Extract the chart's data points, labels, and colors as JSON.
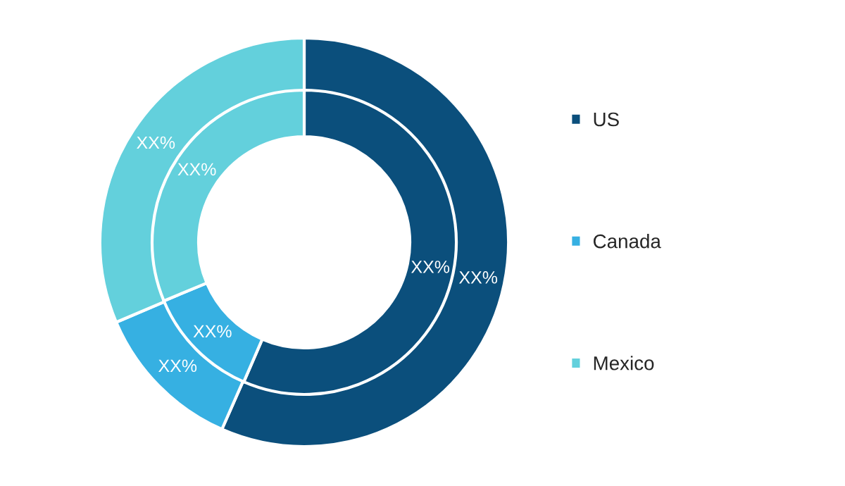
{
  "chart_data": {
    "type": "donut",
    "categories": [
      "US",
      "Canada",
      "Mexico"
    ],
    "colors": [
      "#0b4f7c",
      "#36b0e2",
      "#63d0dc"
    ],
    "series": [
      {
        "values": [
          56.6,
          12,
          31.4
        ],
        "value_labels": [
          "XX%",
          "XX%",
          "XX%"
        ]
      },
      {
        "values": [
          56.5,
          12.2,
          31.3
        ],
        "value_labels": [
          "XX%",
          "XX%",
          "XX%"
        ]
      }
    ],
    "legend": "right"
  }
}
